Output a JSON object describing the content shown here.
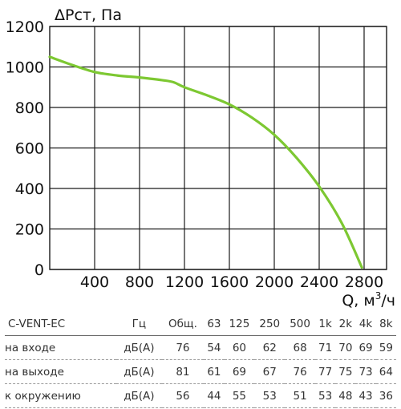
{
  "chart_data": {
    "type": "line",
    "ylabel": "ΔPст, Па",
    "xlabel": "Q, м³/ч",
    "xlabel_base": "Q, м",
    "xlabel_sup": "3",
    "xlabel_tail": "/ч",
    "xlim": [
      0,
      3000
    ],
    "ylim": [
      0,
      1200
    ],
    "x_ticks": [
      400,
      800,
      1200,
      1600,
      2000,
      2400,
      2800
    ],
    "y_ticks": [
      0,
      200,
      400,
      600,
      800,
      1000,
      1200
    ],
    "x_tick_labels": [
      "400",
      "800",
      "1200",
      "1600",
      "2000",
      "2400",
      "2800"
    ],
    "y_tick_labels": [
      "0",
      "200",
      "400",
      "600",
      "800",
      "1000",
      "1200"
    ],
    "grid": true,
    "series": [
      {
        "color": "#7dc832",
        "x": [
          0,
          200,
          400,
          600,
          800,
          1000,
          1100,
          1200,
          1400,
          1600,
          1800,
          2000,
          2200,
          2400,
          2600,
          2780
        ],
        "y": [
          1050,
          1010,
          975,
          958,
          948,
          935,
          925,
          900,
          860,
          815,
          750,
          665,
          550,
          410,
          230,
          10
        ]
      }
    ]
  },
  "table": {
    "headers": [
      "C-VENT-EC",
      "Гц",
      "Общ.",
      "63",
      "125",
      "250",
      "500",
      "1k",
      "2k",
      "4k",
      "8k"
    ],
    "rows": [
      {
        "label": "на входе",
        "unit": "дБ(А)",
        "values": [
          "76",
          "54",
          "60",
          "62",
          "68",
          "71",
          "70",
          "69",
          "59"
        ]
      },
      {
        "label": "на выходе",
        "unit": "дБ(А)",
        "values": [
          "81",
          "61",
          "69",
          "67",
          "76",
          "77",
          "75",
          "73",
          "64"
        ]
      },
      {
        "label": "к окружению",
        "unit": "дБ(А)",
        "values": [
          "56",
          "44",
          "55",
          "53",
          "51",
          "53",
          "48",
          "43",
          "36"
        ]
      }
    ]
  }
}
